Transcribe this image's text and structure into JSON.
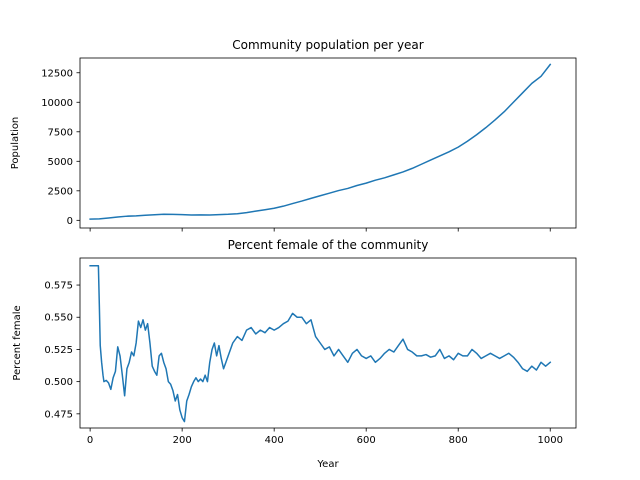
{
  "chart_data": [
    {
      "type": "line",
      "title": "Community population per year",
      "xlabel": "",
      "ylabel": "Population",
      "xlim": [
        -22,
        1056
      ],
      "ylim": [
        -650,
        13750
      ],
      "x_ticks": [
        0,
        200,
        400,
        600,
        800,
        1000
      ],
      "x_tick_labels": [
        "",
        "",
        "",
        "",
        "",
        ""
      ],
      "y_ticks": [
        0,
        2500,
        5000,
        7500,
        10000,
        12500
      ],
      "y_tick_labels": [
        "0",
        "2500",
        "5000",
        "7500",
        "10000",
        "12500"
      ],
      "grid": false,
      "line_color": "#1f77b4",
      "series": [
        {
          "x": [
            0,
            20,
            40,
            60,
            80,
            100,
            120,
            140,
            160,
            180,
            200,
            220,
            240,
            260,
            280,
            300,
            320,
            340,
            360,
            380,
            400,
            420,
            440,
            460,
            480,
            500,
            520,
            540,
            560,
            580,
            600,
            620,
            640,
            660,
            680,
            700,
            720,
            740,
            760,
            780,
            800,
            820,
            840,
            860,
            880,
            900,
            920,
            940,
            960,
            980,
            1000
          ],
          "y": [
            100,
            120,
            200,
            280,
            350,
            380,
            430,
            470,
            520,
            500,
            480,
            450,
            460,
            450,
            480,
            510,
            560,
            650,
            780,
            900,
            1020,
            1200,
            1420,
            1630,
            1860,
            2080,
            2300,
            2520,
            2700,
            2950,
            3150,
            3400,
            3600,
            3850,
            4100,
            4400,
            4750,
            5100,
            5450,
            5800,
            6200,
            6700,
            7250,
            7850,
            8500,
            9200,
            10000,
            10800,
            11600,
            12200,
            13200
          ]
        }
      ]
    },
    {
      "type": "line",
      "title": "Percent female of the community",
      "xlabel": "Year",
      "ylabel": "Percent female",
      "xlim": [
        -22,
        1056
      ],
      "ylim": [
        0.464,
        0.596
      ],
      "x_ticks": [
        0,
        200,
        400,
        600,
        800,
        1000
      ],
      "x_tick_labels": [
        "0",
        "200",
        "400",
        "600",
        "800",
        "1000"
      ],
      "y_ticks": [
        0.475,
        0.5,
        0.525,
        0.55,
        0.575
      ],
      "y_tick_labels": [
        "0.475",
        "0.500",
        "0.525",
        "0.550",
        "0.575"
      ],
      "grid": false,
      "line_color": "#1f77b4",
      "series": [
        {
          "x": [
            0,
            18,
            20,
            22,
            25,
            28,
            30,
            35,
            40,
            45,
            50,
            55,
            60,
            65,
            70,
            75,
            80,
            85,
            90,
            95,
            100,
            105,
            110,
            115,
            120,
            125,
            130,
            135,
            140,
            145,
            150,
            155,
            160,
            165,
            170,
            175,
            180,
            185,
            190,
            195,
            200,
            205,
            210,
            215,
            220,
            225,
            230,
            235,
            240,
            245,
            250,
            255,
            260,
            265,
            270,
            275,
            280,
            285,
            290,
            295,
            300,
            310,
            320,
            330,
            340,
            350,
            360,
            370,
            380,
            390,
            400,
            410,
            420,
            430,
            440,
            450,
            460,
            470,
            480,
            490,
            500,
            510,
            520,
            530,
            540,
            550,
            560,
            570,
            580,
            590,
            600,
            610,
            620,
            630,
            640,
            650,
            660,
            670,
            680,
            690,
            700,
            710,
            720,
            730,
            740,
            750,
            760,
            770,
            780,
            790,
            800,
            810,
            820,
            830,
            840,
            850,
            860,
            870,
            880,
            890,
            900,
            910,
            920,
            930,
            940,
            950,
            960,
            970,
            980,
            990,
            1000
          ],
          "y": [
            0.59,
            0.59,
            0.56,
            0.528,
            0.515,
            0.505,
            0.5,
            0.501,
            0.499,
            0.494,
            0.503,
            0.508,
            0.527,
            0.52,
            0.505,
            0.489,
            0.51,
            0.515,
            0.523,
            0.52,
            0.53,
            0.547,
            0.542,
            0.548,
            0.54,
            0.545,
            0.53,
            0.512,
            0.508,
            0.505,
            0.52,
            0.522,
            0.515,
            0.51,
            0.5,
            0.498,
            0.493,
            0.485,
            0.49,
            0.478,
            0.472,
            0.469,
            0.485,
            0.49,
            0.496,
            0.5,
            0.503,
            0.5,
            0.502,
            0.5,
            0.505,
            0.5,
            0.515,
            0.525,
            0.53,
            0.52,
            0.528,
            0.518,
            0.51,
            0.515,
            0.52,
            0.53,
            0.535,
            0.532,
            0.54,
            0.542,
            0.537,
            0.54,
            0.538,
            0.542,
            0.54,
            0.542,
            0.545,
            0.547,
            0.553,
            0.55,
            0.55,
            0.545,
            0.548,
            0.535,
            0.53,
            0.525,
            0.527,
            0.52,
            0.525,
            0.52,
            0.515,
            0.522,
            0.525,
            0.52,
            0.518,
            0.52,
            0.515,
            0.518,
            0.522,
            0.525,
            0.523,
            0.528,
            0.533,
            0.525,
            0.523,
            0.52,
            0.52,
            0.521,
            0.519,
            0.52,
            0.525,
            0.518,
            0.52,
            0.517,
            0.522,
            0.52,
            0.52,
            0.525,
            0.522,
            0.518,
            0.52,
            0.522,
            0.52,
            0.518,
            0.52,
            0.522,
            0.519,
            0.515,
            0.51,
            0.508,
            0.512,
            0.509,
            0.515,
            0.512,
            0.515
          ]
        }
      ]
    }
  ]
}
